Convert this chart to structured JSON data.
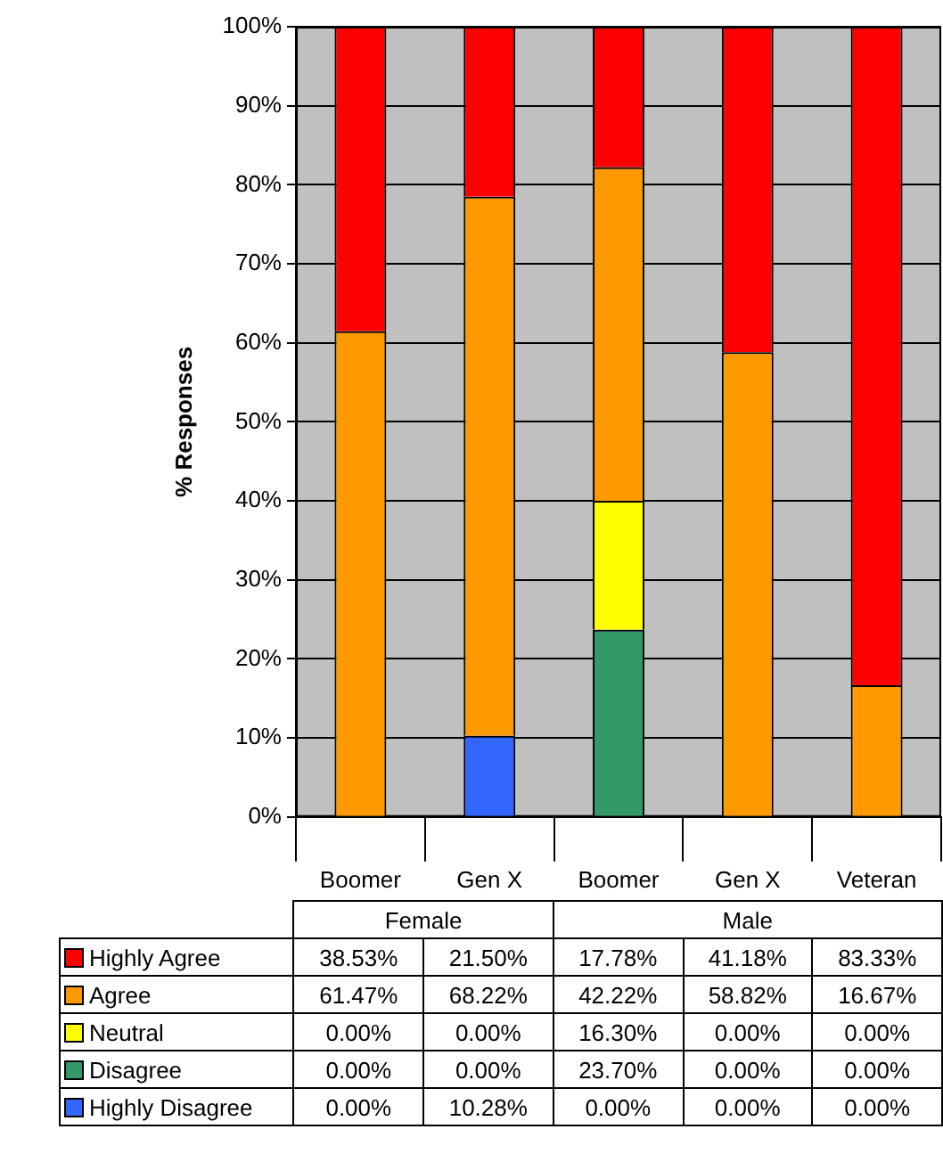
{
  "chart_data": {
    "type": "bar",
    "stacked": true,
    "ylabel": "% Responses",
    "categories": [
      "Boomer",
      "Gen X",
      "Boomer",
      "Gen X",
      "Veteran"
    ],
    "annotations": [
      "Female",
      "Male"
    ],
    "ylim": [
      0,
      100
    ],
    "yticks": [
      {
        "value": 0,
        "label": "0%"
      },
      {
        "value": 10,
        "label": "10%"
      },
      {
        "value": 20,
        "label": "20%"
      },
      {
        "value": 30,
        "label": "30%"
      },
      {
        "value": 40,
        "label": "40%"
      },
      {
        "value": 50,
        "label": "50%"
      },
      {
        "value": 60,
        "label": "60%"
      },
      {
        "value": 70,
        "label": "70%"
      },
      {
        "value": 80,
        "label": "80%"
      },
      {
        "value": 90,
        "label": "90%"
      },
      {
        "value": 100,
        "label": "100%"
      }
    ],
    "grid": "y",
    "legend": "bottom",
    "series": [
      {
        "name": "Highly Disagree",
        "color": "#3366ff",
        "values": [
          0,
          10.28,
          0,
          0,
          0
        ],
        "value_labels": [
          "0.00%",
          "10.28%",
          "0.00%",
          "0.00%",
          "0.00%"
        ]
      },
      {
        "name": "Disagree",
        "color": "#339966",
        "values": [
          0,
          0,
          23.7,
          0,
          0
        ],
        "value_labels": [
          "0.00%",
          "0.00%",
          "23.70%",
          "0.00%",
          "0.00%"
        ]
      },
      {
        "name": "Neutral",
        "color": "#ffff00",
        "values": [
          0,
          0,
          16.3,
          0,
          0
        ],
        "value_labels": [
          "0.00%",
          "0.00%",
          "16.30%",
          "0.00%",
          "0.00%"
        ]
      },
      {
        "name": "Agree",
        "color": "#ff9900",
        "values": [
          61.47,
          68.22,
          42.22,
          58.82,
          16.67
        ],
        "value_labels": [
          "61.47%",
          "68.22%",
          "42.22%",
          "58.82%",
          "16.67%"
        ]
      },
      {
        "name": "Highly Agree",
        "color": "#ff0000",
        "values": [
          38.53,
          21.5,
          17.78,
          41.18,
          83.33
        ],
        "value_labels": [
          "38.53%",
          "21.50%",
          "17.78%",
          "41.18%",
          "83.33%"
        ]
      }
    ]
  }
}
